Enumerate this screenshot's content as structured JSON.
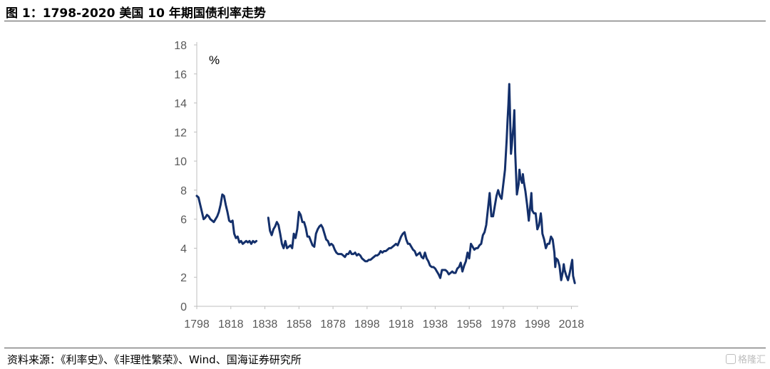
{
  "header": {
    "title": "图 1：1798-2020 美国 10 年期国债利率走势"
  },
  "footer": {
    "source": "资料来源：《利率史》、《非理性繁荣》、Wind、国海证券研究所",
    "watermark": "格隆汇"
  },
  "colors": {
    "line": "#14306b",
    "axis": "#bfbfbf",
    "text": "#595959"
  },
  "chart_data": {
    "type": "line",
    "unit_label": "%",
    "ylim": [
      0,
      18
    ],
    "y_ticks": [
      0,
      2,
      4,
      6,
      8,
      10,
      12,
      14,
      16,
      18
    ],
    "xlim": [
      1798,
      2022
    ],
    "x_ticks": [
      1798,
      1818,
      1838,
      1858,
      1878,
      1898,
      1918,
      1938,
      1958,
      1978,
      1998,
      2018
    ],
    "grid": false,
    "segments": [
      [
        [
          1798,
          7.6
        ],
        [
          1799,
          7.5
        ],
        [
          1800,
          7.0
        ],
        [
          1801,
          6.5
        ],
        [
          1802,
          6.0
        ],
        [
          1803,
          6.1
        ],
        [
          1804,
          6.3
        ],
        [
          1805,
          6.2
        ],
        [
          1806,
          6.0
        ],
        [
          1807,
          5.9
        ],
        [
          1808,
          5.8
        ],
        [
          1809,
          6.0
        ],
        [
          1810,
          6.2
        ],
        [
          1811,
          6.5
        ],
        [
          1812,
          7.0
        ],
        [
          1813,
          7.7
        ],
        [
          1814,
          7.6
        ],
        [
          1815,
          7.0
        ],
        [
          1816,
          6.5
        ],
        [
          1817,
          5.9
        ],
        [
          1818,
          5.8
        ],
        [
          1819,
          5.9
        ],
        [
          1820,
          5.0
        ],
        [
          1821,
          4.7
        ],
        [
          1822,
          4.8
        ],
        [
          1823,
          4.4
        ],
        [
          1824,
          4.5
        ],
        [
          1825,
          4.3
        ],
        [
          1826,
          4.4
        ],
        [
          1827,
          4.5
        ],
        [
          1828,
          4.4
        ],
        [
          1829,
          4.5
        ],
        [
          1830,
          4.3
        ],
        [
          1831,
          4.5
        ],
        [
          1832,
          4.4
        ],
        [
          1833,
          4.5
        ]
      ],
      [
        [
          1840,
          6.1
        ],
        [
          1841,
          5.2
        ],
        [
          1842,
          4.9
        ],
        [
          1843,
          5.3
        ],
        [
          1844,
          5.5
        ],
        [
          1845,
          5.8
        ],
        [
          1846,
          5.6
        ],
        [
          1847,
          5.0
        ],
        [
          1848,
          4.3
        ],
        [
          1849,
          4.0
        ],
        [
          1850,
          4.5
        ],
        [
          1851,
          4.0
        ],
        [
          1852,
          4.1
        ],
        [
          1853,
          4.2
        ],
        [
          1854,
          4.0
        ],
        [
          1855,
          5.0
        ],
        [
          1856,
          4.7
        ],
        [
          1857,
          5.3
        ],
        [
          1858,
          6.5
        ],
        [
          1859,
          6.3
        ],
        [
          1860,
          5.8
        ],
        [
          1861,
          5.8
        ],
        [
          1862,
          5.4
        ],
        [
          1863,
          4.8
        ],
        [
          1864,
          4.8
        ],
        [
          1865,
          4.5
        ],
        [
          1866,
          4.2
        ],
        [
          1867,
          4.1
        ],
        [
          1868,
          5.0
        ],
        [
          1869,
          5.3
        ],
        [
          1870,
          5.5
        ],
        [
          1871,
          5.6
        ],
        [
          1872,
          5.4
        ],
        [
          1873,
          5.0
        ],
        [
          1874,
          4.6
        ],
        [
          1875,
          4.5
        ],
        [
          1876,
          4.2
        ],
        [
          1877,
          4.3
        ],
        [
          1878,
          4.2
        ],
        [
          1879,
          3.9
        ],
        [
          1880,
          3.7
        ],
        [
          1881,
          3.6
        ],
        [
          1882,
          3.6
        ],
        [
          1883,
          3.6
        ],
        [
          1884,
          3.5
        ],
        [
          1885,
          3.4
        ],
        [
          1886,
          3.6
        ],
        [
          1887,
          3.6
        ],
        [
          1888,
          3.8
        ],
        [
          1889,
          3.6
        ],
        [
          1890,
          3.6
        ],
        [
          1891,
          3.7
        ],
        [
          1892,
          3.5
        ],
        [
          1893,
          3.6
        ],
        [
          1894,
          3.5
        ],
        [
          1895,
          3.3
        ],
        [
          1896,
          3.2
        ],
        [
          1897,
          3.1
        ],
        [
          1898,
          3.1
        ],
        [
          1899,
          3.2
        ],
        [
          1900,
          3.2
        ],
        [
          1901,
          3.3
        ],
        [
          1902,
          3.4
        ],
        [
          1903,
          3.5
        ],
        [
          1904,
          3.5
        ],
        [
          1905,
          3.6
        ],
        [
          1906,
          3.8
        ],
        [
          1907,
          3.7
        ],
        [
          1908,
          3.8
        ],
        [
          1909,
          3.8
        ],
        [
          1910,
          3.9
        ],
        [
          1911,
          4.0
        ],
        [
          1912,
          4.0
        ],
        [
          1913,
          4.1
        ],
        [
          1914,
          4.2
        ],
        [
          1915,
          4.3
        ],
        [
          1916,
          4.2
        ],
        [
          1917,
          4.5
        ],
        [
          1918,
          4.8
        ],
        [
          1919,
          5.0
        ],
        [
          1920,
          5.1
        ],
        [
          1921,
          4.6
        ],
        [
          1922,
          4.3
        ],
        [
          1923,
          4.3
        ],
        [
          1924,
          4.1
        ],
        [
          1925,
          3.9
        ],
        [
          1926,
          3.8
        ],
        [
          1927,
          3.5
        ],
        [
          1928,
          3.6
        ],
        [
          1929,
          3.7
        ],
        [
          1930,
          3.4
        ],
        [
          1931,
          3.3
        ],
        [
          1932,
          3.7
        ],
        [
          1933,
          3.3
        ],
        [
          1934,
          3.1
        ],
        [
          1935,
          2.8
        ],
        [
          1936,
          2.7
        ],
        [
          1937,
          2.7
        ],
        [
          1938,
          2.6
        ],
        [
          1939,
          2.4
        ],
        [
          1940,
          2.2
        ],
        [
          1941,
          1.95
        ],
        [
          1942,
          2.5
        ],
        [
          1943,
          2.5
        ],
        [
          1944,
          2.5
        ],
        [
          1945,
          2.4
        ],
        [
          1946,
          2.2
        ],
        [
          1947,
          2.3
        ],
        [
          1948,
          2.4
        ],
        [
          1949,
          2.3
        ],
        [
          1950,
          2.3
        ],
        [
          1951,
          2.6
        ],
        [
          1952,
          2.7
        ],
        [
          1953,
          3.0
        ],
        [
          1954,
          2.4
        ],
        [
          1955,
          2.8
        ],
        [
          1956,
          3.1
        ],
        [
          1957,
          3.7
        ],
        [
          1958,
          3.3
        ],
        [
          1959,
          4.3
        ],
        [
          1960,
          4.1
        ],
        [
          1961,
          3.9
        ],
        [
          1962,
          4.0
        ],
        [
          1963,
          4.0
        ],
        [
          1964,
          4.2
        ],
        [
          1965,
          4.3
        ],
        [
          1966,
          4.9
        ],
        [
          1967,
          5.1
        ],
        [
          1968,
          5.6
        ],
        [
          1969,
          6.7
        ],
        [
          1970,
          7.8
        ],
        [
          1971,
          6.2
        ],
        [
          1972,
          6.2
        ],
        [
          1973,
          6.9
        ],
        [
          1974,
          7.6
        ],
        [
          1975,
          8.0
        ],
        [
          1976,
          7.6
        ],
        [
          1977,
          7.4
        ],
        [
          1978,
          8.4
        ],
        [
          1979,
          9.4
        ],
        [
          1980,
          11.5
        ],
        [
          1980.5,
          12.8
        ],
        [
          1981,
          13.9
        ],
        [
          1981.5,
          15.3
        ],
        [
          1982,
          13.0
        ],
        [
          1982.5,
          10.5
        ],
        [
          1983,
          11.1
        ],
        [
          1983.5,
          11.8
        ],
        [
          1984,
          12.4
        ],
        [
          1984.5,
          13.5
        ],
        [
          1985,
          10.6
        ],
        [
          1986,
          7.7
        ],
        [
          1987,
          8.4
        ],
        [
          1987.5,
          9.4
        ],
        [
          1988,
          8.9
        ],
        [
          1989,
          8.5
        ],
        [
          1989.5,
          9.1
        ],
        [
          1990,
          8.6
        ],
        [
          1991,
          7.9
        ],
        [
          1992,
          7.0
        ],
        [
          1993,
          5.9
        ],
        [
          1994,
          7.1
        ],
        [
          1994.5,
          7.8
        ],
        [
          1995,
          6.6
        ],
        [
          1996,
          6.4
        ],
        [
          1997,
          6.4
        ],
        [
          1998,
          5.3
        ],
        [
          1999,
          5.6
        ],
        [
          2000,
          6.4
        ],
        [
          2000.5,
          5.9
        ],
        [
          2001,
          5.0
        ],
        [
          2002,
          4.6
        ],
        [
          2003,
          4.0
        ],
        [
          2004,
          4.3
        ],
        [
          2005,
          4.3
        ],
        [
          2006,
          4.8
        ],
        [
          2007,
          4.6
        ],
        [
          2008,
          3.7
        ],
        [
          2008.5,
          2.7
        ],
        [
          2009,
          3.3
        ],
        [
          2010,
          3.2
        ],
        [
          2011,
          2.8
        ],
        [
          2012,
          1.8
        ],
        [
          2013,
          2.4
        ],
        [
          2013.5,
          2.9
        ],
        [
          2014,
          2.5
        ],
        [
          2015,
          2.1
        ],
        [
          2016,
          1.8
        ],
        [
          2017,
          2.3
        ],
        [
          2018,
          2.9
        ],
        [
          2018.5,
          3.2
        ],
        [
          2019,
          2.1
        ],
        [
          2020,
          1.6
        ]
      ]
    ]
  }
}
